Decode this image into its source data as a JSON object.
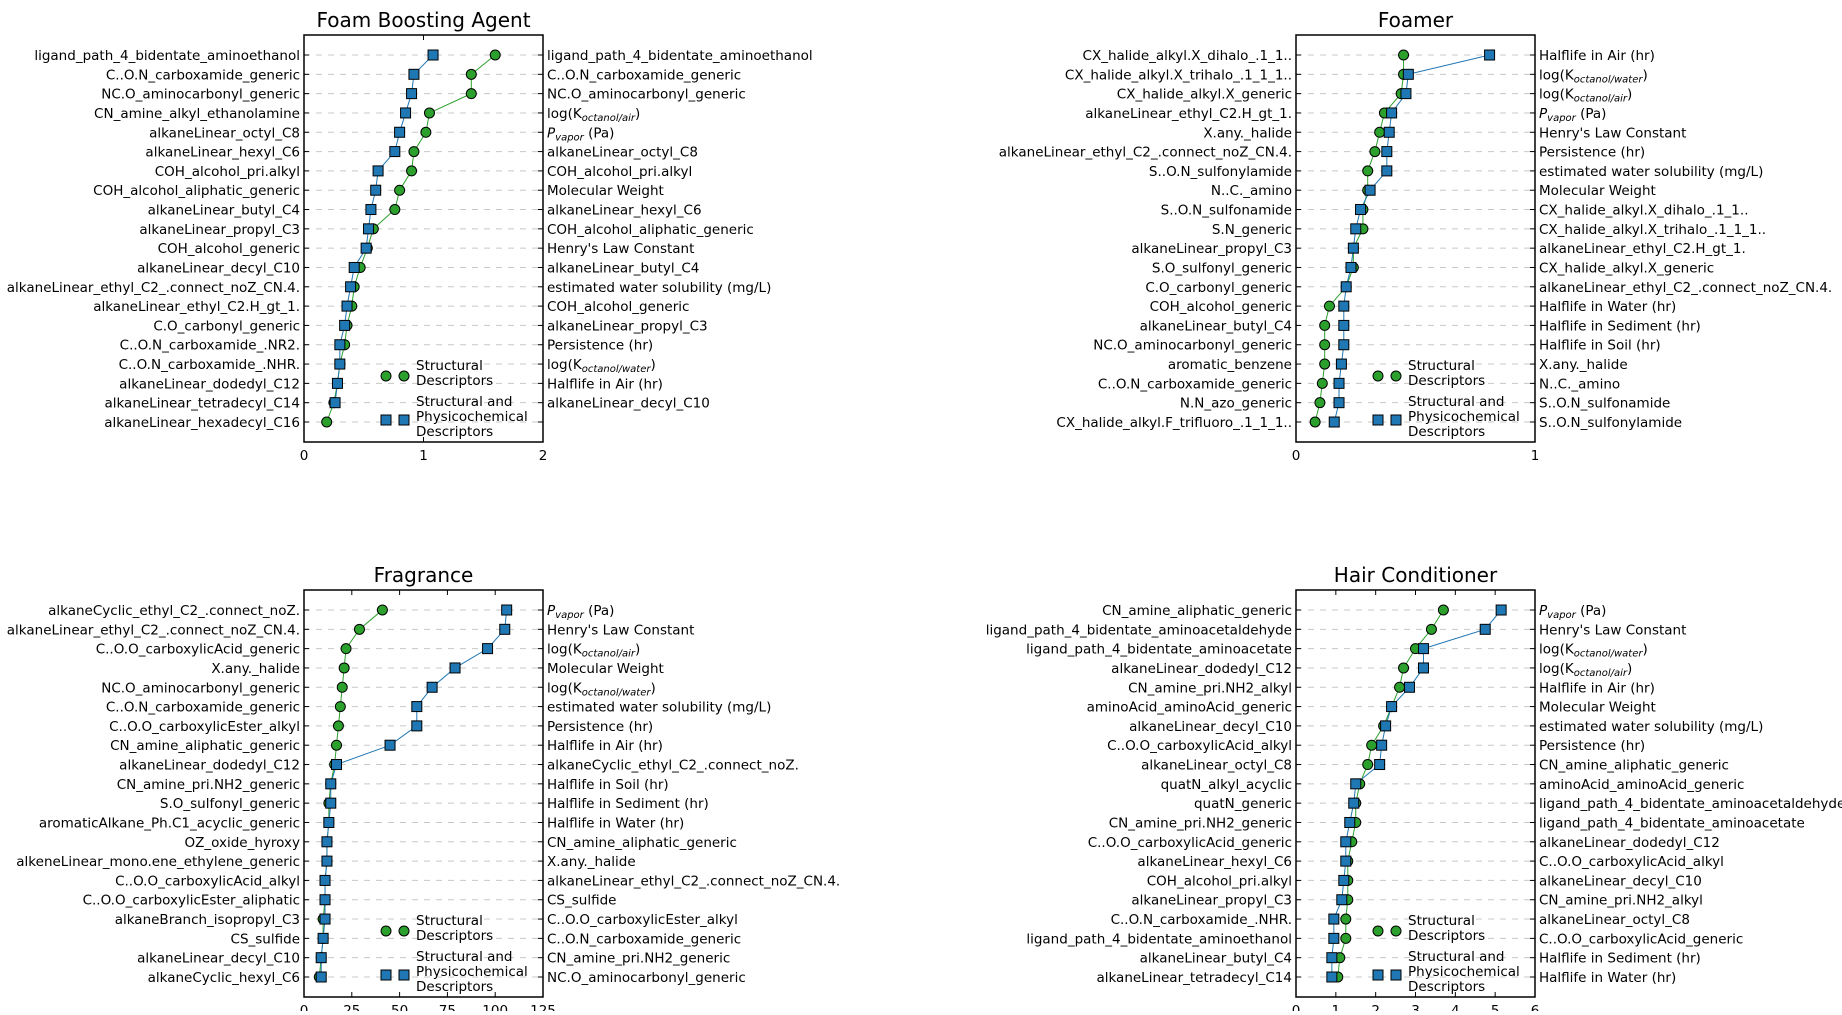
{
  "colors": {
    "structural": "#2ca02c",
    "physchem": "#1f77b4",
    "edge": "#000000",
    "grid": "#c8c8c8"
  },
  "chart_data": [
    {
      "type": "dot",
      "title": "Foam Boosting Agent",
      "xlim": [
        0,
        2
      ],
      "xticks": [
        "0",
        "1",
        "2"
      ],
      "grid": "horizontal dashed",
      "legend": {
        "position": "lower-right",
        "structural": "Structural Descriptors",
        "physchem": "Structural and Physicochemical Descriptors"
      },
      "struct_labels": [
        "ligand_path_4_bidentate_aminoethanol",
        "C..O.N_carboxamide_generic",
        "NC.O_aminocarbonyl_generic",
        "CN_amine_alkyl_ethanolamine",
        "alkaneLinear_octyl_C8",
        "alkaneLinear_hexyl_C6",
        "COH_alcohol_pri.alkyl",
        "COH_alcohol_aliphatic_generic",
        "alkaneLinear_butyl_C4",
        "alkaneLinear_propyl_C3",
        "COH_alcohol_generic",
        "alkaneLinear_decyl_C10",
        "alkaneLinear_ethyl_C2_.connect_noZ_CN.4.",
        "alkaneLinear_ethyl_C2.H_gt_1.",
        "C.O_carbonyl_generic",
        "C..O.N_carboxamide_.NR2.",
        "C..O.N_carboxamide_.NHR.",
        "alkaneLinear_dodedyl_C12",
        "alkaneLinear_tetradecyl_C14",
        "alkaneLinear_hexadecyl_C16"
      ],
      "struct_values": [
        1.6,
        1.4,
        1.4,
        1.05,
        1.02,
        0.92,
        0.9,
        0.8,
        0.76,
        0.58,
        0.53,
        0.47,
        0.42,
        0.4,
        0.36,
        0.34,
        0.3,
        0.28,
        0.25,
        0.19
      ],
      "phys_labels": [
        "ligand_path_4_bidentate_aminoethanol",
        "C..O.N_carboxamide_generic",
        "NC.O_aminocarbonyl_generic",
        "log(K_octanol/air)",
        "P_vapor (Pa)",
        "alkaneLinear_octyl_C8",
        "COH_alcohol_pri.alkyl",
        "Molecular Weight",
        "alkaneLinear_hexyl_C6",
        "COH_alcohol_aliphatic_generic",
        "Henry's Law Constant",
        "alkaneLinear_butyl_C4",
        "estimated water solubility (mg/L)",
        "COH_alcohol_generic",
        "alkaneLinear_propyl_C3",
        "Persistence (hr)",
        "log(K_octanol/water)",
        "Halflife in Air (hr)",
        "alkaneLinear_decyl_C10"
      ],
      "phys_values": [
        1.08,
        0.92,
        0.9,
        0.85,
        0.8,
        0.76,
        0.62,
        0.6,
        0.56,
        0.54,
        0.52,
        0.42,
        0.39,
        0.36,
        0.34,
        0.3,
        0.3,
        0.28,
        0.26
      ]
    },
    {
      "type": "dot",
      "title": "Foamer",
      "xlim": [
        0,
        1
      ],
      "xticks": [
        "0",
        "1"
      ],
      "grid": "horizontal dashed",
      "legend": {
        "position": "lower-right",
        "structural": "Structural Descriptors",
        "physchem": "Structural and Physicochemical Descriptors"
      },
      "struct_labels": [
        "CX_halide_alkyl.X_dihalo_.1_1..",
        "CX_halide_alkyl.X_trihalo_.1_1_1..",
        "CX_halide_alkyl.X_generic",
        "alkaneLinear_ethyl_C2.H_gt_1.",
        "X.any._halide",
        "alkaneLinear_ethyl_C2_.connect_noZ_CN.4.",
        "S..O.N_sulfonylamide",
        "N..C._amino",
        "S..O.N_sulfonamide",
        "S.N_generic",
        "alkaneLinear_propyl_C3",
        "S.O_sulfonyl_generic",
        "C.O_carbonyl_generic",
        "COH_alcohol_generic",
        "alkaneLinear_butyl_C4",
        "NC.O_aminocarbonyl_generic",
        "aromatic_benzene",
        "C..O.N_carboxamide_generic",
        "N.N_azo_generic",
        "CX_halide_alkyl.F_trifluoro_.1_1_1.."
      ],
      "struct_values": [
        0.45,
        0.45,
        0.44,
        0.37,
        0.35,
        0.33,
        0.3,
        0.3,
        0.28,
        0.28,
        0.24,
        0.24,
        0.21,
        0.14,
        0.12,
        0.12,
        0.12,
        0.11,
        0.1,
        0.08
      ],
      "phys_labels": [
        "Halflife in Air (hr)",
        "log(K_octanol/water)",
        "log(K_octanol/air)",
        "P_vapor (Pa)",
        "Henry's Law Constant",
        "Persistence (hr)",
        "estimated water solubility (mg/L)",
        "Molecular Weight",
        "CX_halide_alkyl.X_dihalo_.1_1..",
        "CX_halide_alkyl.X_trihalo_.1_1_1..",
        "alkaneLinear_ethyl_C2.H_gt_1.",
        "CX_halide_alkyl.X_generic",
        "alkaneLinear_ethyl_C2_.connect_noZ_CN.4.",
        "Halflife in Water (hr)",
        "Halflife in Sediment (hr)",
        "Halflife in Soil (hr)",
        "X.any._halide",
        "N..C._amino",
        "S..O.N_sulfonamide",
        "S..O.N_sulfonylamide"
      ],
      "phys_values": [
        0.81,
        0.47,
        0.46,
        0.4,
        0.39,
        0.38,
        0.38,
        0.31,
        0.27,
        0.25,
        0.24,
        0.23,
        0.21,
        0.2,
        0.2,
        0.2,
        0.19,
        0.18,
        0.18,
        0.16
      ]
    },
    {
      "type": "dot",
      "title": "Fragrance",
      "xlim": [
        0,
        125
      ],
      "xticks": [
        "0",
        "25",
        "50",
        "75",
        "100",
        "125"
      ],
      "grid": "horizontal dashed",
      "legend": {
        "position": "lower-right",
        "structural": "Structural Descriptors",
        "physchem": "Structural and Physicochemical Descriptors"
      },
      "struct_labels": [
        "alkaneCyclic_ethyl_C2_.connect_noZ.",
        "alkaneLinear_ethyl_C2_.connect_noZ_CN.4.",
        "C..O.O_carboxylicAcid_generic",
        "X.any._halide",
        "NC.O_aminocarbonyl_generic",
        "C..O.N_carboxamide_generic",
        "C..O.O_carboxylicEster_alkyl",
        "CN_amine_aliphatic_generic",
        "alkaneLinear_dodedyl_C12",
        "CN_amine_pri.NH2_generic",
        "S.O_sulfonyl_generic",
        "aromaticAlkane_Ph.C1_acyclic_generic",
        "OZ_oxide_hyroxy",
        "alkeneLinear_mono.ene_ethylene_generic",
        "C..O.O_carboxylicAcid_alkyl",
        "C..O.O_carboxylicEster_aliphatic",
        "alkaneBranch_isopropyl_C3",
        "CS_sulfide",
        "alkaneLinear_decyl_C10",
        "alkaneCyclic_hexyl_C6"
      ],
      "struct_values": [
        41,
        29,
        22,
        21,
        20,
        19,
        18,
        17,
        16,
        14,
        13,
        13,
        12,
        12,
        11,
        11,
        10,
        10,
        9,
        8
      ],
      "phys_labels": [
        "P_vapor (Pa)",
        "Henry's Law Constant",
        "log(K_octanol/air)",
        "Molecular Weight",
        "log(K_octanol/water)",
        "estimated water solubility (mg/L)",
        "Persistence (hr)",
        "Halflife in Air (hr)",
        "alkaneCyclic_ethyl_C2_.connect_noZ.",
        "Halflife in Soil (hr)",
        "Halflife in Sediment (hr)",
        "Halflife in Water (hr)",
        "CN_amine_aliphatic_generic",
        "X.any._halide",
        "alkaneLinear_ethyl_C2_.connect_noZ_CN.4.",
        "CS_sulfide",
        "C..O.O_carboxylicEster_alkyl",
        "C..O.N_carboxamide_generic",
        "CN_amine_pri.NH2_generic",
        "NC.O_aminocarbonyl_generic"
      ],
      "phys_values": [
        106,
        105,
        96,
        79,
        67,
        59,
        59,
        45,
        17,
        14,
        14,
        13,
        12,
        12,
        11,
        11,
        11,
        10,
        9,
        9
      ]
    },
    {
      "type": "dot",
      "title": "Hair Conditioner",
      "xlim": [
        0,
        6
      ],
      "xticks": [
        "0",
        "1",
        "2",
        "3",
        "4",
        "5",
        "6"
      ],
      "grid": "horizontal dashed",
      "legend": {
        "position": "lower-right",
        "structural": "Structural Descriptors",
        "physchem": "Structural and Physicochemical Descriptors"
      },
      "struct_labels": [
        "CN_amine_aliphatic_generic",
        "ligand_path_4_bidentate_aminoacetaldehyde",
        "ligand_path_4_bidentate_aminoacetate",
        "alkaneLinear_dodedyl_C12",
        "CN_amine_pri.NH2_alkyl",
        "aminoAcid_aminoAcid_generic",
        "alkaneLinear_decyl_C10",
        "C..O.O_carboxylicAcid_alkyl",
        "alkaneLinear_octyl_C8",
        "quatN_alkyl_acyclic",
        "quatN_generic",
        "CN_amine_pri.NH2_generic",
        "C..O.O_carboxylicAcid_generic",
        "alkaneLinear_hexyl_C6",
        "COH_alcohol_pri.alkyl",
        "alkaneLinear_propyl_C3",
        "C..O.N_carboxamide_.NHR.",
        "ligand_path_4_bidentate_aminoethanol",
        "alkaneLinear_butyl_C4",
        "alkaneLinear_tetradecyl_C14"
      ],
      "struct_values": [
        3.7,
        3.4,
        3.0,
        2.7,
        2.6,
        2.4,
        2.2,
        1.9,
        1.8,
        1.6,
        1.5,
        1.5,
        1.4,
        1.3,
        1.3,
        1.3,
        1.25,
        1.25,
        1.1,
        1.05
      ],
      "phys_labels": [
        "P_vapor (Pa)",
        "Henry's Law Constant",
        "log(K_octanol/water)",
        "log(K_octanol/air)",
        "Halflife in Air (hr)",
        "Molecular Weight",
        "estimated water solubility (mg/L)",
        "Persistence (hr)",
        "CN_amine_aliphatic_generic",
        "aminoAcid_aminoAcid_generic",
        "ligand_path_4_bidentate_aminoacetaldehyde",
        "ligand_path_4_bidentate_aminoacetate",
        "alkaneLinear_dodedyl_C12",
        "C..O.O_carboxylicAcid_alkyl",
        "alkaneLinear_decyl_C10",
        "CN_amine_pri.NH2_alkyl",
        "alkaneLinear_octyl_C8",
        "C..O.O_carboxylicAcid_generic",
        "Halflife in Sediment (hr)",
        "Halflife in Water (hr)"
      ],
      "phys_values": [
        5.15,
        4.75,
        3.2,
        3.2,
        2.85,
        2.4,
        2.25,
        2.15,
        2.1,
        1.5,
        1.45,
        1.35,
        1.25,
        1.25,
        1.2,
        1.15,
        0.95,
        0.95,
        0.9,
        0.9
      ]
    }
  ]
}
